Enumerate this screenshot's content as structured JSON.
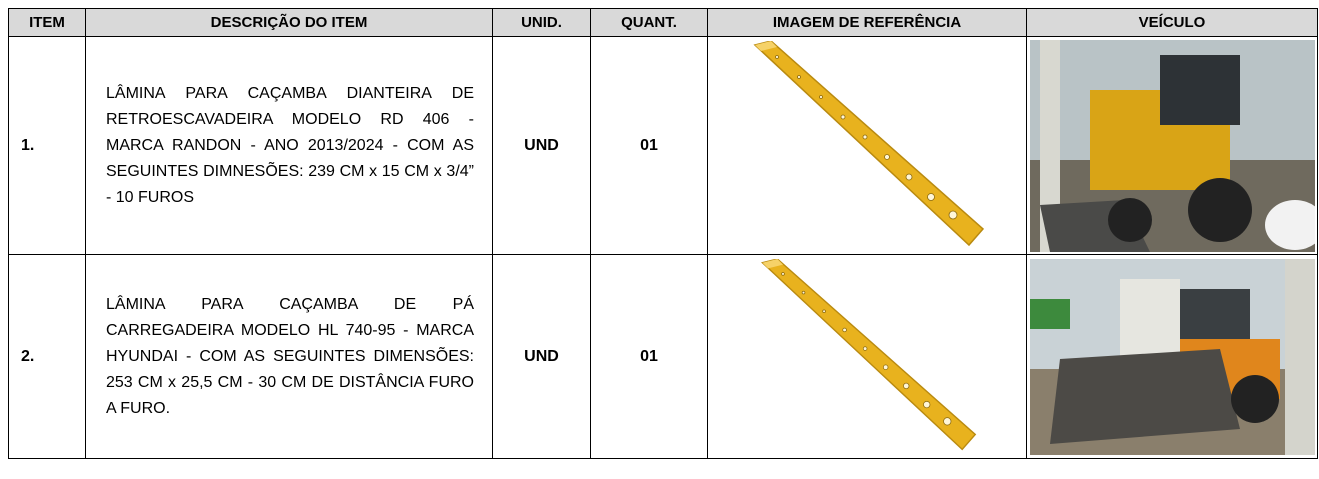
{
  "table": {
    "headers": [
      "ITEM",
      "DESCRIÇÃO DO ITEM",
      "UNID.",
      "QUANT.",
      "IMAGEM DE REFERÊNCIA",
      "VEÍCULO"
    ],
    "rows": [
      [
        "1.",
        "LÂMINA PARA CAÇAMBA DIANTEIRA DE RETROESCAVADEIRA MODELO RD 406 - MARCA RANDON - ANO 2013/2024 - COM AS SEGUINTES DIMNESÕES: 239 CM x 15 CM x 3/4” - 10 FUROS",
        "UND",
        "01"
      ],
      [
        "2.",
        "LÂMINA PARA CAÇAMBA DE PÁ CARREGADEIRA MODELO HL 740-95 - MARCA HYUNDAI - COM AS SEGUINTES DIMENSÕES: 253 CM x 25,5 CM - 30 CM DE DISTÂNCIA FURO A FURO.",
        "UND",
        "01"
      ]
    ]
  }
}
